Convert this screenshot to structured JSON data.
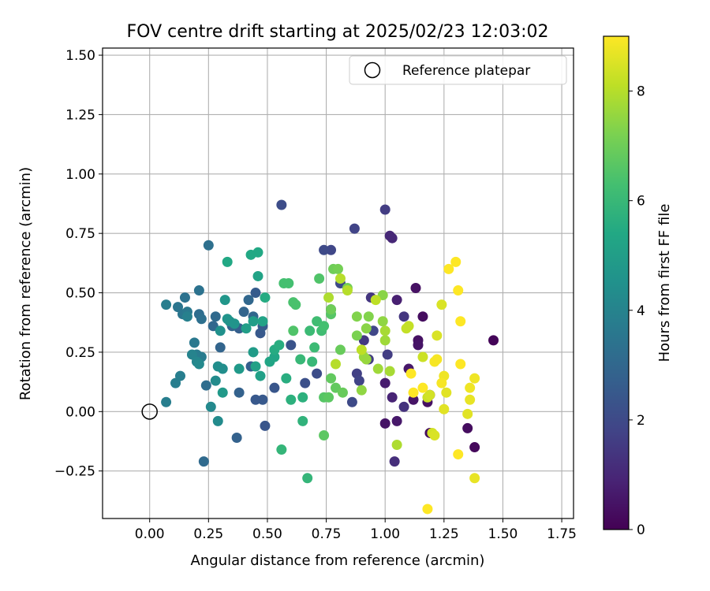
{
  "chart_data": {
    "type": "scatter",
    "title": "FOV centre drift starting at 2025/02/23 12:03:02",
    "xlabel": "Angular distance from reference (arcmin)",
    "ylabel": "Rotation from reference (arcmin)",
    "xlim": [
      -0.2,
      1.8
    ],
    "ylim": [
      -0.45,
      1.53
    ],
    "x_ticks": [
      "0.00",
      "0.25",
      "0.50",
      "0.75",
      "1.00",
      "1.25",
      "1.50",
      "1.75"
    ],
    "y_ticks": [
      "−0.25",
      "0.00",
      "0.25",
      "0.50",
      "0.75",
      "1.00",
      "1.25",
      "1.50"
    ],
    "grid": true,
    "legend": {
      "placement": "top-right",
      "entries": [
        "Reference platepar"
      ]
    },
    "reference_point": {
      "x": 0.0,
      "y": 0.0,
      "label": "Reference platepar"
    },
    "colorbar": {
      "label": "Hours from first FF file",
      "range": [
        0,
        9
      ],
      "ticks": [
        "0",
        "2",
        "4",
        "6",
        "8"
      ],
      "colormap": "viridis"
    },
    "points": [
      {
        "x": 1.46,
        "y": 0.3,
        "h": 0.1
      },
      {
        "x": 1.38,
        "y": -0.15,
        "h": 0.2
      },
      {
        "x": 1.35,
        "y": -0.07,
        "h": 0.3
      },
      {
        "x": 1.19,
        "y": -0.09,
        "h": 0.3
      },
      {
        "x": 1.18,
        "y": 0.04,
        "h": 0.4
      },
      {
        "x": 1.19,
        "y": 0.07,
        "h": 0.3
      },
      {
        "x": 1.16,
        "y": 0.4,
        "h": 0.3
      },
      {
        "x": 1.14,
        "y": 0.3,
        "h": 0.4
      },
      {
        "x": 1.13,
        "y": 0.52,
        "h": 0.4
      },
      {
        "x": 1.14,
        "y": 0.28,
        "h": 0.5
      },
      {
        "x": 1.12,
        "y": 0.05,
        "h": 0.5
      },
      {
        "x": 1.1,
        "y": 0.18,
        "h": 0.6
      },
      {
        "x": 1.0,
        "y": -0.05,
        "h": 0.5
      },
      {
        "x": 1.05,
        "y": -0.04,
        "h": 0.6
      },
      {
        "x": 1.0,
        "y": 0.12,
        "h": 0.7
      },
      {
        "x": 1.05,
        "y": 0.47,
        "h": 0.8
      },
      {
        "x": 1.03,
        "y": 0.06,
        "h": 0.9
      },
      {
        "x": 1.02,
        "y": 0.74,
        "h": 1.0
      },
      {
        "x": 1.03,
        "y": 0.73,
        "h": 1.0
      },
      {
        "x": 1.04,
        "y": -0.21,
        "h": 1.2
      },
      {
        "x": 1.08,
        "y": 0.02,
        "h": 1.3
      },
      {
        "x": 1.08,
        "y": 0.4,
        "h": 1.4
      },
      {
        "x": 1.01,
        "y": 0.24,
        "h": 1.6
      },
      {
        "x": 1.0,
        "y": 0.85,
        "h": 1.6
      },
      {
        "x": 0.94,
        "y": 0.48,
        "h": 1.4
      },
      {
        "x": 0.91,
        "y": 0.3,
        "h": 1.5
      },
      {
        "x": 0.93,
        "y": 0.22,
        "h": 1.6
      },
      {
        "x": 0.88,
        "y": 0.16,
        "h": 1.7
      },
      {
        "x": 0.89,
        "y": 0.13,
        "h": 1.8
      },
      {
        "x": 0.87,
        "y": 0.77,
        "h": 1.8
      },
      {
        "x": 0.95,
        "y": 0.34,
        "h": 1.9
      },
      {
        "x": 0.86,
        "y": 0.04,
        "h": 2.0
      },
      {
        "x": 0.77,
        "y": 0.68,
        "h": 1.9
      },
      {
        "x": 0.74,
        "y": 0.68,
        "h": 2.0
      },
      {
        "x": 0.81,
        "y": 0.54,
        "h": 2.0
      },
      {
        "x": 0.77,
        "y": 0.43,
        "h": 2.1
      },
      {
        "x": 0.71,
        "y": 0.16,
        "h": 2.1
      },
      {
        "x": 0.56,
        "y": 0.87,
        "h": 2.1
      },
      {
        "x": 0.66,
        "y": 0.12,
        "h": 2.2
      },
      {
        "x": 0.6,
        "y": 0.28,
        "h": 2.3
      },
      {
        "x": 0.49,
        "y": -0.06,
        "h": 2.4
      },
      {
        "x": 0.53,
        "y": 0.1,
        "h": 2.4
      },
      {
        "x": 0.45,
        "y": 0.05,
        "h": 2.5
      },
      {
        "x": 0.48,
        "y": 0.05,
        "h": 2.5
      },
      {
        "x": 0.47,
        "y": 0.33,
        "h": 2.5
      },
      {
        "x": 0.48,
        "y": 0.36,
        "h": 2.6
      },
      {
        "x": 0.45,
        "y": 0.5,
        "h": 2.6
      },
      {
        "x": 0.43,
        "y": 0.19,
        "h": 2.7
      },
      {
        "x": 0.38,
        "y": 0.35,
        "h": 2.7
      },
      {
        "x": 0.37,
        "y": -0.11,
        "h": 2.8
      },
      {
        "x": 0.38,
        "y": 0.08,
        "h": 2.8
      },
      {
        "x": 0.3,
        "y": 0.27,
        "h": 2.9
      },
      {
        "x": 0.35,
        "y": 0.36,
        "h": 2.9
      },
      {
        "x": 0.4,
        "y": 0.42,
        "h": 2.9
      },
      {
        "x": 0.44,
        "y": 0.4,
        "h": 3.0
      },
      {
        "x": 0.42,
        "y": 0.47,
        "h": 3.0
      },
      {
        "x": 0.27,
        "y": 0.36,
        "h": 3.0
      },
      {
        "x": 0.28,
        "y": 0.4,
        "h": 3.1
      },
      {
        "x": 0.23,
        "y": -0.21,
        "h": 3.1
      },
      {
        "x": 0.24,
        "y": 0.11,
        "h": 3.2
      },
      {
        "x": 0.21,
        "y": 0.41,
        "h": 3.2
      },
      {
        "x": 0.22,
        "y": 0.39,
        "h": 3.3
      },
      {
        "x": 0.25,
        "y": 0.7,
        "h": 3.3
      },
      {
        "x": 0.21,
        "y": 0.51,
        "h": 3.4
      },
      {
        "x": 0.15,
        "y": 0.48,
        "h": 3.4
      },
      {
        "x": 0.12,
        "y": 0.44,
        "h": 3.5
      },
      {
        "x": 0.14,
        "y": 0.41,
        "h": 3.5
      },
      {
        "x": 0.16,
        "y": 0.42,
        "h": 3.6
      },
      {
        "x": 0.19,
        "y": 0.29,
        "h": 3.6
      },
      {
        "x": 0.2,
        "y": 0.24,
        "h": 3.7
      },
      {
        "x": 0.22,
        "y": 0.23,
        "h": 3.7
      },
      {
        "x": 0.11,
        "y": 0.12,
        "h": 3.8
      },
      {
        "x": 0.13,
        "y": 0.15,
        "h": 3.8
      },
      {
        "x": 0.07,
        "y": 0.04,
        "h": 3.8
      },
      {
        "x": 0.07,
        "y": 0.45,
        "h": 3.8
      },
      {
        "x": 0.16,
        "y": 0.4,
        "h": 3.9
      },
      {
        "x": 0.18,
        "y": 0.24,
        "h": 4.0
      },
      {
        "x": 0.2,
        "y": 0.21,
        "h": 4.1
      },
      {
        "x": 0.21,
        "y": 0.2,
        "h": 4.2
      },
      {
        "x": 0.26,
        "y": 0.02,
        "h": 4.2
      },
      {
        "x": 0.29,
        "y": -0.04,
        "h": 4.3
      },
      {
        "x": 0.28,
        "y": 0.13,
        "h": 4.3
      },
      {
        "x": 0.29,
        "y": 0.19,
        "h": 4.4
      },
      {
        "x": 0.31,
        "y": 0.18,
        "h": 4.4
      },
      {
        "x": 0.3,
        "y": 0.34,
        "h": 4.5
      },
      {
        "x": 0.34,
        "y": 0.38,
        "h": 4.5
      },
      {
        "x": 0.33,
        "y": 0.39,
        "h": 4.6
      },
      {
        "x": 0.36,
        "y": 0.37,
        "h": 4.6
      },
      {
        "x": 0.32,
        "y": 0.47,
        "h": 4.7
      },
      {
        "x": 0.31,
        "y": 0.08,
        "h": 4.8
      },
      {
        "x": 0.38,
        "y": 0.18,
        "h": 4.8
      },
      {
        "x": 0.44,
        "y": 0.25,
        "h": 4.9
      },
      {
        "x": 0.44,
        "y": 0.38,
        "h": 5.0
      },
      {
        "x": 0.41,
        "y": 0.35,
        "h": 5.0
      },
      {
        "x": 0.45,
        "y": 0.19,
        "h": 5.1
      },
      {
        "x": 0.47,
        "y": 0.15,
        "h": 5.1
      },
      {
        "x": 0.46,
        "y": 0.57,
        "h": 5.2
      },
      {
        "x": 0.48,
        "y": 0.38,
        "h": 5.2
      },
      {
        "x": 0.51,
        "y": 0.21,
        "h": 5.3
      },
      {
        "x": 0.53,
        "y": 0.23,
        "h": 5.3
      },
      {
        "x": 0.33,
        "y": 0.63,
        "h": 5.4
      },
      {
        "x": 0.43,
        "y": 0.66,
        "h": 5.4
      },
      {
        "x": 0.46,
        "y": 0.67,
        "h": 5.4
      },
      {
        "x": 0.49,
        "y": 0.48,
        "h": 5.5
      },
      {
        "x": 0.53,
        "y": 0.26,
        "h": 5.5
      },
      {
        "x": 0.55,
        "y": 0.28,
        "h": 5.6
      },
      {
        "x": 0.58,
        "y": 0.14,
        "h": 5.6
      },
      {
        "x": 0.6,
        "y": 0.05,
        "h": 5.7
      },
      {
        "x": 0.65,
        "y": 0.06,
        "h": 5.7
      },
      {
        "x": 0.65,
        "y": -0.04,
        "h": 5.8
      },
      {
        "x": 0.56,
        "y": -0.16,
        "h": 5.9
      },
      {
        "x": 0.67,
        "y": -0.28,
        "h": 5.9
      },
      {
        "x": 0.64,
        "y": 0.22,
        "h": 6.0
      },
      {
        "x": 0.69,
        "y": 0.21,
        "h": 6.0
      },
      {
        "x": 0.7,
        "y": 0.27,
        "h": 6.1
      },
      {
        "x": 0.68,
        "y": 0.34,
        "h": 6.1
      },
      {
        "x": 0.71,
        "y": 0.38,
        "h": 6.2
      },
      {
        "x": 0.73,
        "y": 0.34,
        "h": 6.2
      },
      {
        "x": 0.74,
        "y": 0.36,
        "h": 6.3
      },
      {
        "x": 0.59,
        "y": 0.54,
        "h": 6.3
      },
      {
        "x": 0.57,
        "y": 0.54,
        "h": 6.3
      },
      {
        "x": 0.61,
        "y": 0.46,
        "h": 6.4
      },
      {
        "x": 0.62,
        "y": 0.45,
        "h": 6.4
      },
      {
        "x": 0.61,
        "y": 0.34,
        "h": 6.5
      },
      {
        "x": 0.72,
        "y": 0.56,
        "h": 6.5
      },
      {
        "x": 0.77,
        "y": 0.41,
        "h": 6.6
      },
      {
        "x": 0.74,
        "y": 0.06,
        "h": 6.6
      },
      {
        "x": 0.76,
        "y": 0.06,
        "h": 6.7
      },
      {
        "x": 0.74,
        "y": -0.1,
        "h": 6.7
      },
      {
        "x": 0.77,
        "y": 0.14,
        "h": 6.8
      },
      {
        "x": 0.79,
        "y": 0.1,
        "h": 6.8
      },
      {
        "x": 0.81,
        "y": 0.26,
        "h": 6.9
      },
      {
        "x": 0.82,
        "y": 0.08,
        "h": 6.9
      },
      {
        "x": 0.77,
        "y": 0.43,
        "h": 7.0
      },
      {
        "x": 0.78,
        "y": 0.6,
        "h": 7.0
      },
      {
        "x": 0.8,
        "y": 0.6,
        "h": 7.1
      },
      {
        "x": 0.84,
        "y": 0.52,
        "h": 7.1
      },
      {
        "x": 0.88,
        "y": 0.32,
        "h": 7.2
      },
      {
        "x": 0.88,
        "y": 0.4,
        "h": 7.3
      },
      {
        "x": 0.93,
        "y": 0.4,
        "h": 7.3
      },
      {
        "x": 0.92,
        "y": 0.35,
        "h": 7.4
      },
      {
        "x": 0.99,
        "y": 0.49,
        "h": 7.4
      },
      {
        "x": 0.99,
        "y": 0.38,
        "h": 7.5
      },
      {
        "x": 0.9,
        "y": 0.09,
        "h": 7.5
      },
      {
        "x": 0.91,
        "y": 0.23,
        "h": 7.6
      },
      {
        "x": 0.92,
        "y": 0.22,
        "h": 7.6
      },
      {
        "x": 0.97,
        "y": 0.18,
        "h": 7.7
      },
      {
        "x": 1.0,
        "y": 0.3,
        "h": 7.7
      },
      {
        "x": 1.0,
        "y": 0.34,
        "h": 7.8
      },
      {
        "x": 1.02,
        "y": 0.17,
        "h": 7.8
      },
      {
        "x": 1.05,
        "y": -0.14,
        "h": 7.9
      },
      {
        "x": 0.76,
        "y": 0.48,
        "h": 7.9
      },
      {
        "x": 0.79,
        "y": 0.2,
        "h": 8.0
      },
      {
        "x": 0.81,
        "y": 0.56,
        "h": 8.0
      },
      {
        "x": 0.84,
        "y": 0.51,
        "h": 8.0
      },
      {
        "x": 0.9,
        "y": 0.26,
        "h": 8.1
      },
      {
        "x": 0.96,
        "y": 0.47,
        "h": 8.1
      },
      {
        "x": 1.09,
        "y": 0.35,
        "h": 8.2
      },
      {
        "x": 1.1,
        "y": 0.36,
        "h": 8.2
      },
      {
        "x": 1.16,
        "y": 0.23,
        "h": 8.3
      },
      {
        "x": 1.18,
        "y": 0.06,
        "h": 8.3
      },
      {
        "x": 1.19,
        "y": 0.07,
        "h": 8.4
      },
      {
        "x": 1.2,
        "y": -0.09,
        "h": 8.4
      },
      {
        "x": 1.21,
        "y": -0.1,
        "h": 8.5
      },
      {
        "x": 1.24,
        "y": 0.45,
        "h": 8.5
      },
      {
        "x": 1.22,
        "y": 0.32,
        "h": 8.5
      },
      {
        "x": 1.26,
        "y": 0.08,
        "h": 8.6
      },
      {
        "x": 1.25,
        "y": 0.01,
        "h": 8.6
      },
      {
        "x": 1.35,
        "y": -0.01,
        "h": 8.6
      },
      {
        "x": 1.36,
        "y": 0.05,
        "h": 8.7
      },
      {
        "x": 1.38,
        "y": -0.28,
        "h": 8.7
      },
      {
        "x": 1.38,
        "y": 0.14,
        "h": 8.8
      },
      {
        "x": 1.36,
        "y": 0.1,
        "h": 8.8
      },
      {
        "x": 1.25,
        "y": 0.15,
        "h": 8.8
      },
      {
        "x": 1.24,
        "y": 0.12,
        "h": 8.9
      },
      {
        "x": 1.22,
        "y": 0.22,
        "h": 8.9
      },
      {
        "x": 1.21,
        "y": 0.21,
        "h": 8.9
      },
      {
        "x": 1.18,
        "y": -0.41,
        "h": 9.0
      },
      {
        "x": 1.12,
        "y": 0.08,
        "h": 9.0
      },
      {
        "x": 1.11,
        "y": 0.16,
        "h": 9.0
      },
      {
        "x": 1.16,
        "y": 0.1,
        "h": 9.0
      },
      {
        "x": 1.31,
        "y": -0.18,
        "h": 9.0
      },
      {
        "x": 1.32,
        "y": 0.2,
        "h": 9.0
      },
      {
        "x": 1.32,
        "y": 0.38,
        "h": 9.0
      },
      {
        "x": 1.31,
        "y": 0.51,
        "h": 9.0
      },
      {
        "x": 1.27,
        "y": 0.6,
        "h": 9.0
      },
      {
        "x": 1.3,
        "y": 0.63,
        "h": 9.0
      }
    ]
  }
}
